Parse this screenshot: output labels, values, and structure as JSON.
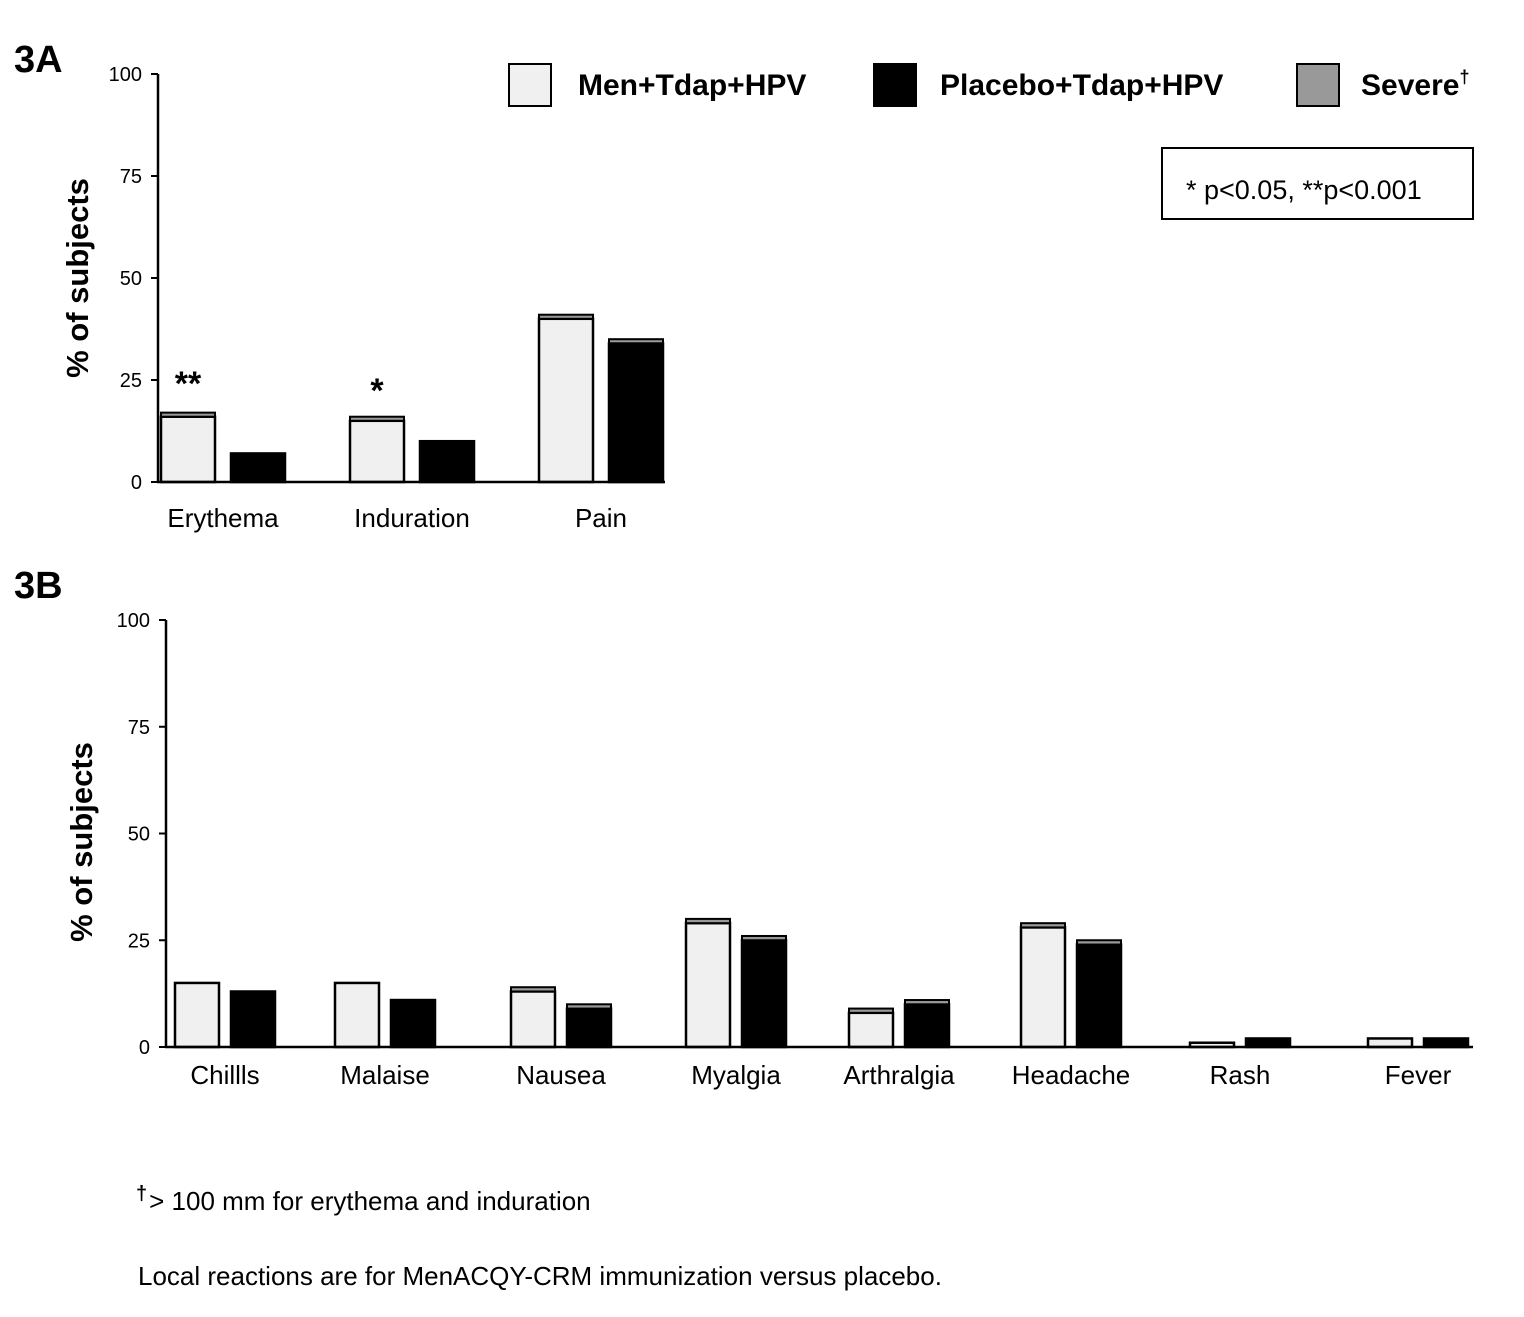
{
  "colors": {
    "men": "#f0f0f0",
    "placebo": "#000000",
    "severe": "#999999",
    "outline": "#000000"
  },
  "legend": {
    "men": "Men+Tdap+HPV",
    "placebo": "Placebo+Tdap+HPV",
    "severe": "Severe",
    "severe_mark": "†"
  },
  "pvalue_note": "* p<0.05, **p<0.001",
  "footnotes": {
    "dagger": "†",
    "line1": "> 100 mm for erythema and induration",
    "line2": "Local reactions are for MenACQY-CRM immunization versus placebo."
  },
  "chart_data": [
    {
      "panel": "3A",
      "type": "bar",
      "stacked": true,
      "ylabel": "% of subjects",
      "ylim": [
        0,
        100
      ],
      "yticks": [
        0,
        25,
        50,
        75,
        100
      ],
      "categories": [
        "Erythema",
        "Induration",
        "Pain"
      ],
      "series": [
        {
          "name": "Men+Tdap+HPV",
          "values": [
            16,
            15,
            40
          ],
          "severe": [
            1,
            1,
            1
          ]
        },
        {
          "name": "Placebo+Tdap+HPV",
          "values": [
            7,
            10,
            34
          ],
          "severe": [
            0,
            0,
            1
          ]
        }
      ],
      "significance": [
        "**",
        "*",
        ""
      ]
    },
    {
      "panel": "3B",
      "type": "bar",
      "stacked": true,
      "ylabel": "% of subjects",
      "ylim": [
        0,
        100
      ],
      "yticks": [
        0,
        25,
        50,
        75,
        100
      ],
      "categories": [
        "Chillls",
        "Malaise",
        "Nausea",
        "Myalgia",
        "Arthralgia",
        "Headache",
        "Rash",
        "Fever"
      ],
      "series": [
        {
          "name": "Men+Tdap+HPV",
          "values": [
            15,
            15,
            13,
            29,
            8,
            28,
            1,
            2
          ],
          "severe": [
            0,
            0,
            1,
            1,
            1,
            1,
            0,
            0
          ]
        },
        {
          "name": "Placebo+Tdap+HPV",
          "values": [
            13,
            11,
            9,
            25,
            10,
            24,
            2,
            2
          ],
          "severe": [
            0,
            0,
            1,
            1,
            1,
            1,
            0,
            0
          ]
        }
      ],
      "significance": [
        "",
        "",
        "",
        "",
        "",
        "",
        "",
        ""
      ]
    }
  ]
}
